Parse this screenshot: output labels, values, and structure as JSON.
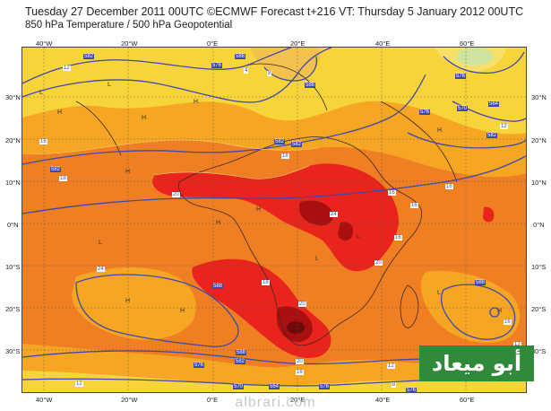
{
  "header": {
    "title": "Tuesday 27 December 2011 00UTC ©ECMWF Forecast t+216 VT: Thursday 5 January 2012 00UTC",
    "subtitle": "850 hPa Temperature / 500 hPa Geopotential"
  },
  "axes": {
    "lon_labels": [
      "40°W",
      "20°W",
      "0°E",
      "20°E",
      "40°E",
      "60°E"
    ],
    "lat_labels": [
      "30°N",
      "20°N",
      "10°N",
      "0°N",
      "10°S",
      "20°S",
      "30°S"
    ]
  },
  "contour_labels": [
    "582",
    "576",
    "588",
    "588",
    "582",
    "570",
    "564",
    "576",
    "582",
    "576",
    "582",
    "588",
    "588",
    "588",
    "582",
    "576",
    "570",
    "564",
    "576",
    "576",
    "582"
  ],
  "isotherm_labels": [
    "12",
    "16",
    "8",
    "4",
    "12",
    "18",
    "18",
    "20",
    "24",
    "16",
    "16",
    "16",
    "20",
    "24",
    "18",
    "20",
    "16",
    "20",
    "16",
    "12",
    "12",
    "16",
    "12",
    "8"
  ],
  "pressure_labels": [
    "L",
    "H",
    "H",
    "L",
    "H",
    "H",
    "L",
    "H",
    "H",
    "H",
    "L",
    "L",
    "H",
    "H",
    "L",
    "H"
  ],
  "colors": {
    "t_lt4": "#f2c14e",
    "t_4_12": "#f7d439",
    "t_12_16": "#f6a623",
    "t_16_20": "#f07f23",
    "t_20_24": "#e8241d",
    "t_gt24": "#a90f0f",
    "geopotential_line": "#3f48a8"
  },
  "logo": {
    "text": "أبو ميعاد"
  },
  "watermark": "albrari.com"
}
